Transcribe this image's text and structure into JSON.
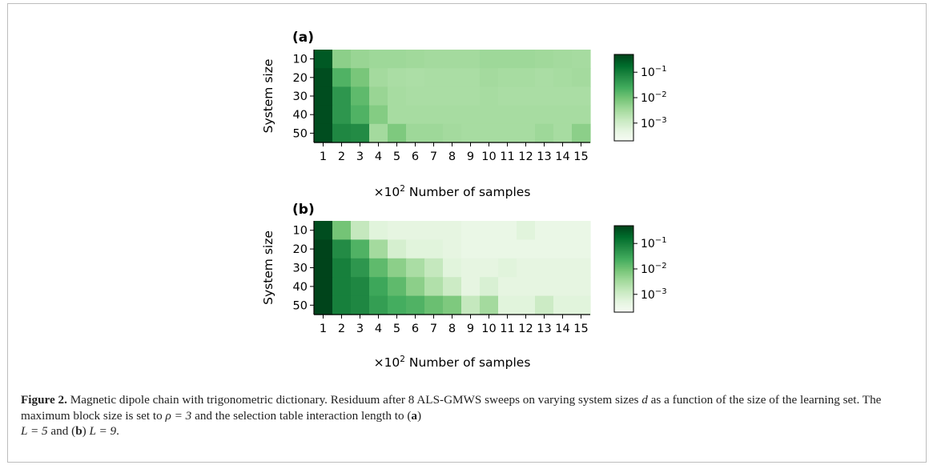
{
  "chart_data": [
    {
      "type": "heatmap",
      "panel_label": "(a)",
      "x_categories": [
        "1",
        "2",
        "3",
        "4",
        "5",
        "6",
        "7",
        "8",
        "9",
        "10",
        "11",
        "12",
        "13",
        "14",
        "15"
      ],
      "y_categories": [
        "10",
        "20",
        "30",
        "40",
        "50"
      ],
      "xlabel": "×10² Number of samples",
      "xlabel_prefix": "×10",
      "xlabel_exp": "2",
      "xlabel_rest": " Number of samples",
      "ylabel": "System size",
      "color_scale": "log",
      "colormap": "Greens",
      "vmin": 0.0002,
      "vmax": 0.5,
      "colorbar_ticks": [
        {
          "value": 0.1,
          "base": "10",
          "exp": "−1"
        },
        {
          "value": 0.01,
          "base": "10",
          "exp": "−2"
        },
        {
          "value": 0.001,
          "base": "10",
          "exp": "−3"
        }
      ],
      "values": [
        [
          0.3,
          0.006,
          0.0045,
          0.004,
          0.004,
          0.0038,
          0.0035,
          0.0035,
          0.0035,
          0.004,
          0.004,
          0.004,
          0.0038,
          0.0035,
          0.0033
        ],
        [
          0.4,
          0.02,
          0.009,
          0.0035,
          0.003,
          0.0028,
          0.003,
          0.003,
          0.003,
          0.0035,
          0.0032,
          0.0032,
          0.003,
          0.0032,
          0.0035
        ],
        [
          0.4,
          0.05,
          0.015,
          0.0045,
          0.0032,
          0.003,
          0.003,
          0.003,
          0.003,
          0.0032,
          0.003,
          0.003,
          0.003,
          0.003,
          0.003
        ],
        [
          0.4,
          0.05,
          0.02,
          0.007,
          0.0032,
          0.0032,
          0.0032,
          0.0032,
          0.0032,
          0.0032,
          0.0032,
          0.0032,
          0.0032,
          0.0032,
          0.0032
        ],
        [
          0.4,
          0.08,
          0.07,
          0.0035,
          0.008,
          0.004,
          0.004,
          0.0035,
          0.0032,
          0.0032,
          0.0032,
          0.0032,
          0.004,
          0.0032,
          0.006
        ]
      ]
    },
    {
      "type": "heatmap",
      "panel_label": "(b)",
      "x_categories": [
        "1",
        "2",
        "3",
        "4",
        "5",
        "6",
        "7",
        "8",
        "9",
        "10",
        "11",
        "12",
        "13",
        "14",
        "15"
      ],
      "y_categories": [
        "10",
        "20",
        "30",
        "40",
        "50"
      ],
      "xlabel": "×10² Number of samples",
      "xlabel_prefix": "×10",
      "xlabel_exp": "2",
      "xlabel_rest": " Number of samples",
      "ylabel": "System size",
      "color_scale": "log",
      "colormap": "Greens",
      "vmin": 0.0002,
      "vmax": 0.5,
      "colorbar_ticks": [
        {
          "value": 0.1,
          "base": "10",
          "exp": "−1"
        },
        {
          "value": 0.01,
          "base": "10",
          "exp": "−2"
        },
        {
          "value": 0.001,
          "base": "10",
          "exp": "−3"
        }
      ],
      "values": [
        [
          0.4,
          0.01,
          0.0015,
          0.0006,
          0.0005,
          0.0005,
          0.0005,
          0.0005,
          0.0004,
          0.0004,
          0.0004,
          0.0006,
          0.0004,
          0.0004,
          0.0004
        ],
        [
          0.5,
          0.07,
          0.02,
          0.0035,
          0.0009,
          0.0006,
          0.0006,
          0.0005,
          0.0004,
          0.0004,
          0.0004,
          0.0004,
          0.0004,
          0.0004,
          0.0004
        ],
        [
          0.5,
          0.1,
          0.05,
          0.015,
          0.006,
          0.003,
          0.0015,
          0.0006,
          0.0005,
          0.0005,
          0.0006,
          0.0005,
          0.0005,
          0.0005,
          0.0005
        ],
        [
          0.5,
          0.1,
          0.08,
          0.03,
          0.015,
          0.006,
          0.0025,
          0.0012,
          0.0005,
          0.0008,
          0.0005,
          0.0005,
          0.0005,
          0.0005,
          0.0005
        ],
        [
          0.5,
          0.1,
          0.08,
          0.04,
          0.025,
          0.02,
          0.012,
          0.008,
          0.0015,
          0.0035,
          0.0006,
          0.0006,
          0.0012,
          0.0006,
          0.0006
        ]
      ]
    }
  ],
  "caption": {
    "label": "Figure 2.",
    "text_1": " Magnetic dipole chain with trigonometric dictionary. Residuum after 8 ALS-GMWS sweeps on varying system sizes ",
    "var_d": "d",
    "text_2": " as a function of the size of the learning set. The maximum block size is set to ",
    "rho_expr": "ρ = 3",
    "text_3": " and the selection table interaction length to (",
    "ref_a": "a",
    "text_4": ")",
    "L_a": "L = 5",
    "text_5": " and (",
    "ref_b": "b",
    "text_6": ") ",
    "L_b": "L = 9",
    "text_7": "."
  }
}
